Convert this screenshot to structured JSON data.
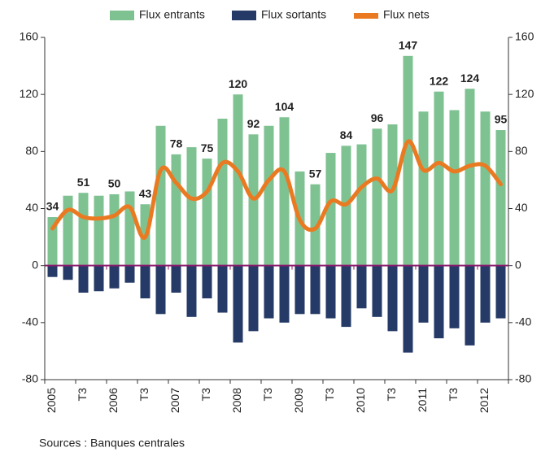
{
  "chart_data": {
    "type": "bar",
    "categories": [
      "2005",
      null,
      "T3",
      null,
      "2006",
      null,
      "T3",
      null,
      "2007",
      null,
      "T3",
      null,
      "2008",
      null,
      "T3",
      null,
      "2009",
      null,
      "T3",
      null,
      "2010",
      null,
      "T3",
      null,
      "2011",
      null,
      "T3",
      null,
      "2012",
      null
    ],
    "series": [
      {
        "name": "Flux entrants",
        "color": "#7fc292",
        "type": "bar",
        "values": [
          34,
          49,
          51,
          49,
          50,
          52,
          43,
          98,
          78,
          83,
          75,
          103,
          120,
          92,
          98,
          104,
          66,
          57,
          79,
          84,
          85,
          96,
          99,
          147,
          108,
          122,
          109,
          124,
          108,
          95
        ],
        "value_labels": [
          "34",
          null,
          "51",
          null,
          "50",
          null,
          "43",
          null,
          "78",
          null,
          "75",
          null,
          "120",
          "92",
          null,
          "104",
          null,
          "57",
          null,
          "84",
          null,
          "96",
          null,
          "147",
          null,
          "122",
          null,
          "124",
          null,
          "95"
        ]
      },
      {
        "name": "Flux sortants",
        "color": "#253a66",
        "type": "bar",
        "values": [
          -8,
          -10,
          -19,
          -18,
          -16,
          -12,
          -23,
          -34,
          -19,
          -36,
          -23,
          -33,
          -54,
          -46,
          -37,
          -40,
          -34,
          -34,
          -37,
          -43,
          -30,
          -36,
          -46,
          -61,
          -40,
          -51,
          -44,
          -56,
          -40,
          -37
        ]
      },
      {
        "name": "Flux nets",
        "color": "#ea7a22",
        "type": "line",
        "values": [
          26,
          39,
          34,
          33,
          35,
          41,
          20,
          67,
          58,
          47,
          52,
          72,
          66,
          47,
          60,
          66,
          32,
          26,
          45,
          43,
          55,
          61,
          53,
          87,
          67,
          72,
          66,
          70,
          70,
          57
        ]
      }
    ],
    "ylim": [
      -80,
      160
    ],
    "yticks": [
      -80,
      -40,
      0,
      40,
      80,
      120,
      160
    ],
    "y2lim": [
      -80,
      160
    ],
    "y2ticks": [
      -80,
      -40,
      0,
      40,
      80,
      120,
      160
    ],
    "zero_line_color": "#8b1a6b",
    "source": "Sources : Banques centrales"
  }
}
